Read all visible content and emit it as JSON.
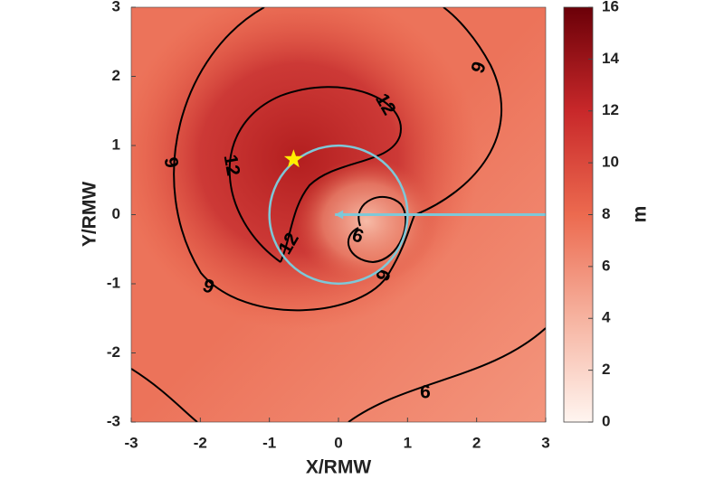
{
  "chart_data": {
    "type": "contour",
    "x_label": "X/RMW",
    "y_label": "Y/RMW",
    "xlim": [
      -3,
      3
    ],
    "ylim": [
      -3,
      3
    ],
    "xticks": [
      -3,
      -2,
      -1,
      0,
      1,
      2,
      3
    ],
    "yticks": [
      -3,
      -2,
      -1,
      0,
      1,
      2,
      3
    ],
    "colorbar": {
      "label": "m",
      "clim": [
        0,
        16
      ],
      "ticks": [
        0,
        2,
        4,
        6,
        8,
        10,
        12,
        14,
        16
      ],
      "colormap": [
        "#fff5f0",
        "#f6b3a0",
        "#ec6a4f",
        "#c8282a",
        "#6b0008"
      ]
    },
    "contour_levels": [
      6,
      9,
      12
    ],
    "contour_color": "#000000",
    "circle": {
      "center": [
        0,
        0
      ],
      "radius": 1,
      "color": "#7ec8d8"
    },
    "star": {
      "x": -0.65,
      "y": 0.8,
      "color": "#ffee00"
    },
    "arrow": {
      "x": [
        3,
        -0.05
      ],
      "y": [
        0,
        0
      ],
      "color": "#7ec8d8"
    }
  }
}
